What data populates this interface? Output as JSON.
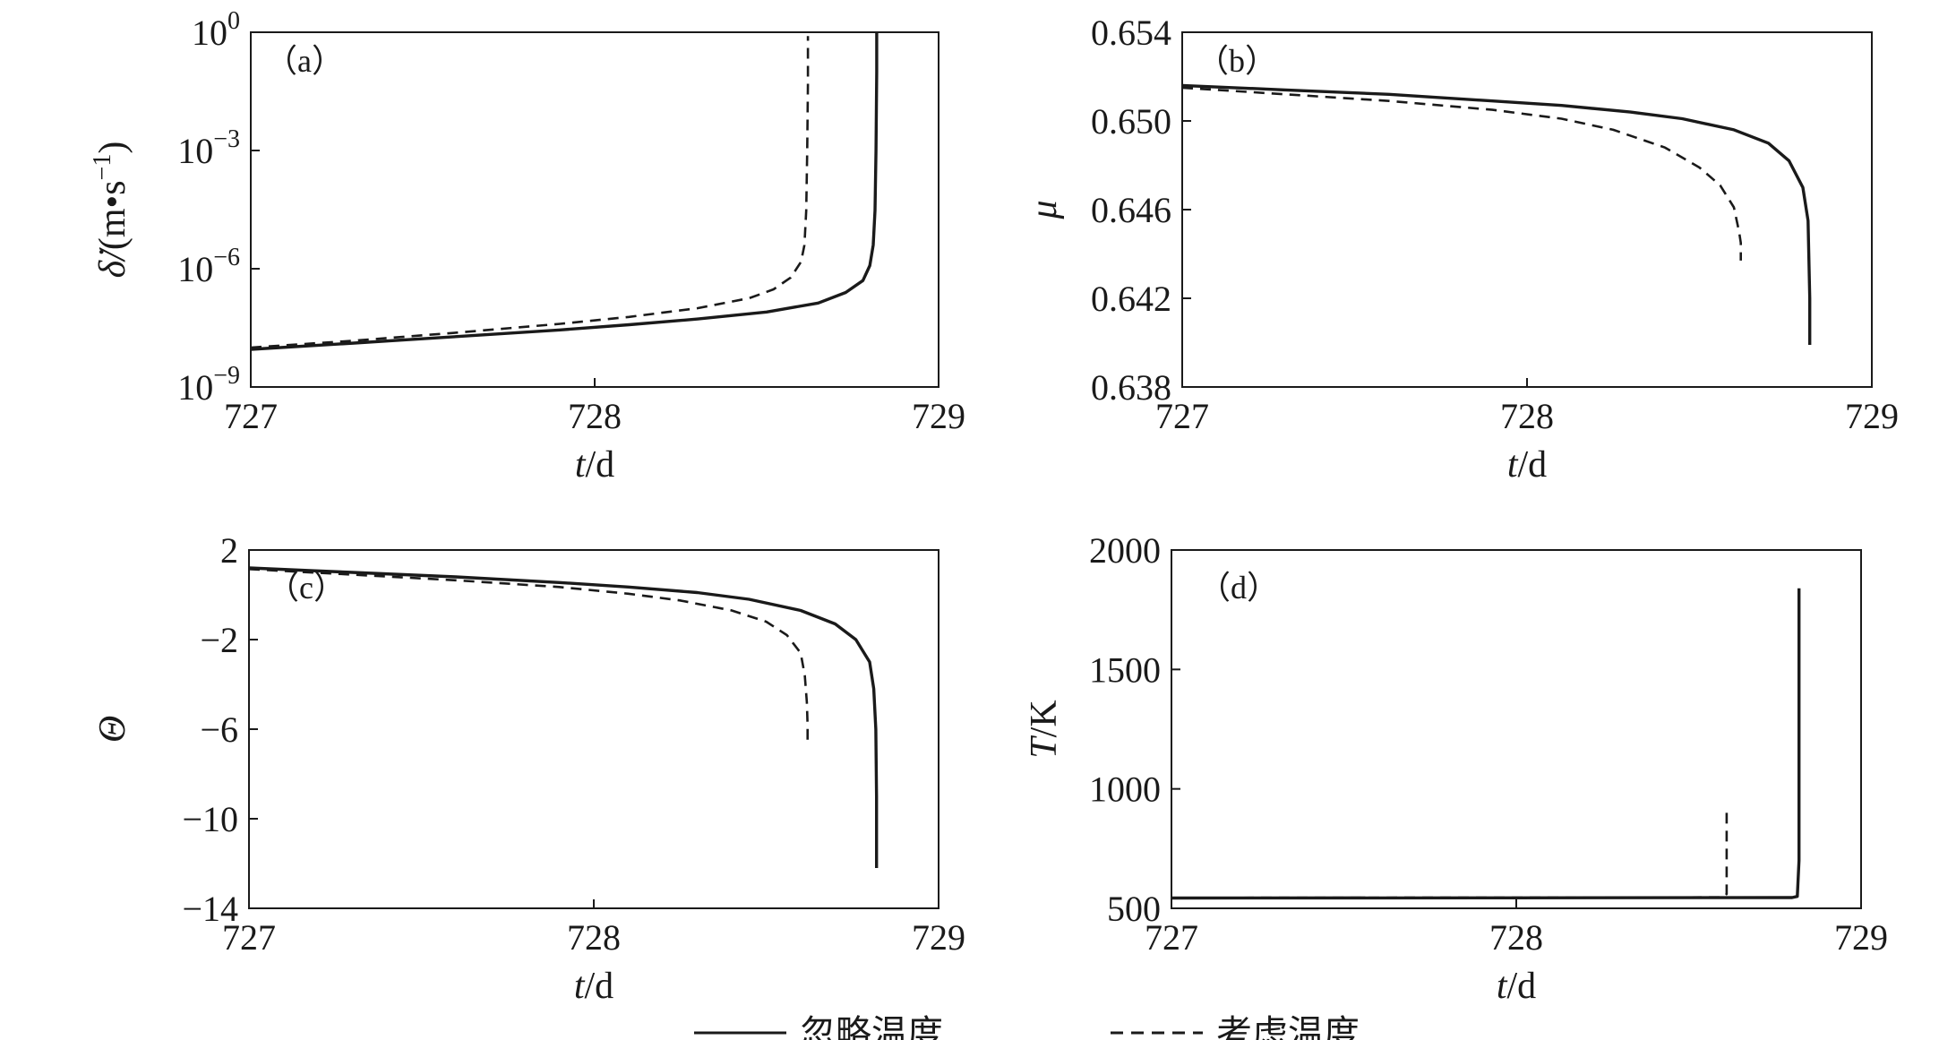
{
  "legend": [
    {
      "label": "忽略温度",
      "style": "solid"
    },
    {
      "label": "考虑温度",
      "style": "dashed"
    }
  ],
  "chart_data": [
    {
      "id": "a",
      "type": "line",
      "panel_label": "（a）",
      "ylabel_pre": "δ̇/",
      "ylabel_unit": "(m•s",
      "ylabel_sup": "−1",
      "ylabel_post": ")",
      "xlabel_italic": "t",
      "xlabel_rest": "/d",
      "xlim": [
        727,
        729
      ],
      "yscale": "log",
      "ylim": [
        1e-09,
        1
      ],
      "xticks": [
        727,
        728,
        729
      ],
      "yticks": [
        {
          "v": 1,
          "base": "10",
          "exp": "0"
        },
        {
          "v": 0.001,
          "base": "10",
          "exp": "−3"
        },
        {
          "v": 1e-06,
          "base": "10",
          "exp": "−6"
        },
        {
          "v": 1e-09,
          "base": "10",
          "exp": "−9"
        }
      ],
      "series": [
        {
          "style": "solid",
          "x": [
            727.0,
            727.3,
            727.6,
            727.9,
            728.1,
            728.3,
            728.5,
            728.65,
            728.73,
            728.78,
            728.8,
            728.81,
            728.815,
            728.818,
            728.82,
            728.82
          ],
          "y": [
            9e-09,
            1.3e-08,
            1.9e-08,
            2.8e-08,
            3.8e-08,
            5.3e-08,
            8e-08,
            1.35e-07,
            2.5e-07,
            5e-07,
            1.2e-06,
            4e-06,
            3e-05,
            0.001,
            0.1,
            1.0
          ]
        },
        {
          "style": "dashed",
          "x": [
            727.0,
            727.3,
            727.6,
            727.9,
            728.1,
            728.3,
            728.45,
            728.52,
            728.57,
            728.6,
            728.61,
            728.615,
            728.618,
            728.62,
            728.62
          ],
          "y": [
            1e-08,
            1.5e-08,
            2.4e-08,
            4e-08,
            6e-08,
            1e-07,
            1.8e-07,
            3e-07,
            6e-07,
            1.5e-06,
            4e-06,
            3e-05,
            0.001,
            0.05,
            0.8
          ]
        }
      ]
    },
    {
      "id": "b",
      "type": "line",
      "panel_label": "（b）",
      "ylabel": "μ",
      "xlabel_italic": "t",
      "xlabel_rest": "/d",
      "xlim": [
        727,
        729
      ],
      "ylim": [
        0.638,
        0.654
      ],
      "xticks": [
        727,
        728,
        729
      ],
      "yticks": [
        0.638,
        0.642,
        0.646,
        0.65,
        0.654
      ],
      "ytick_labels": [
        "0.638",
        "0.642",
        "0.646",
        "0.650",
        "0.654"
      ],
      "series": [
        {
          "style": "solid",
          "x": [
            727.0,
            727.3,
            727.6,
            727.9,
            728.1,
            728.3,
            728.45,
            728.6,
            728.7,
            728.76,
            728.8,
            728.815,
            728.82,
            728.82
          ],
          "y": [
            0.6516,
            0.6514,
            0.6512,
            0.6509,
            0.6507,
            0.6504,
            0.6501,
            0.6496,
            0.649,
            0.6482,
            0.647,
            0.6455,
            0.642,
            0.6399
          ]
        },
        {
          "style": "dashed",
          "x": [
            727.0,
            727.3,
            727.6,
            727.9,
            728.1,
            728.25,
            728.4,
            728.5,
            728.56,
            728.6,
            728.615,
            728.62,
            728.62
          ],
          "y": [
            0.6515,
            0.6512,
            0.6509,
            0.6505,
            0.6501,
            0.6496,
            0.6488,
            0.6479,
            0.6471,
            0.6461,
            0.645,
            0.6445,
            0.6437
          ]
        }
      ]
    },
    {
      "id": "c",
      "type": "line",
      "panel_label": "（c）",
      "ylabel": "Θ",
      "xlabel_italic": "t",
      "xlabel_rest": "/d",
      "xlim": [
        727,
        729
      ],
      "ylim": [
        -14,
        2
      ],
      "xticks": [
        727,
        728,
        729
      ],
      "yticks": [
        2,
        -2,
        -6,
        -10,
        -14
      ],
      "ytick_labels": [
        "2",
        "−2",
        "−6",
        "−10",
        "−14"
      ],
      "series": [
        {
          "style": "solid",
          "x": [
            727.0,
            727.3,
            727.6,
            727.9,
            728.1,
            728.3,
            728.45,
            728.6,
            728.7,
            728.76,
            728.8,
            728.812,
            728.818,
            728.82,
            728.82
          ],
          "y": [
            1.2,
            1.0,
            0.8,
            0.55,
            0.35,
            0.1,
            -0.2,
            -0.7,
            -1.3,
            -2.0,
            -3.0,
            -4.2,
            -6.0,
            -9.0,
            -12.2
          ]
        },
        {
          "style": "dashed",
          "x": [
            727.0,
            727.3,
            727.6,
            727.9,
            728.1,
            728.25,
            728.4,
            728.5,
            728.56,
            728.6,
            728.612,
            728.618,
            728.62,
            728.62
          ],
          "y": [
            1.15,
            0.9,
            0.65,
            0.35,
            0.05,
            -0.25,
            -0.7,
            -1.2,
            -1.8,
            -2.6,
            -3.6,
            -4.8,
            -5.8,
            -6.6
          ]
        }
      ]
    },
    {
      "id": "d",
      "type": "line",
      "panel_label": "（d）",
      "ylabel_italic": "T",
      "ylabel_rest": "/K",
      "xlabel_italic": "t",
      "xlabel_rest": "/d",
      "xlim": [
        727,
        729
      ],
      "ylim": [
        500,
        2000
      ],
      "xticks": [
        727,
        728,
        729
      ],
      "yticks": [
        500,
        1000,
        1500,
        2000
      ],
      "ytick_labels": [
        "500",
        "1000",
        "1500",
        "2000"
      ],
      "series": [
        {
          "style": "solid",
          "x": [
            727.0,
            728.0,
            728.8,
            728.815,
            728.82,
            728.82
          ],
          "y": [
            543,
            544,
            545,
            550,
            700,
            1840
          ]
        },
        {
          "style": "dashed",
          "x": [
            727.0,
            728.0,
            728.6,
            728.61,
            728.61
          ],
          "y": [
            544,
            545,
            546,
            560,
            920
          ]
        }
      ]
    }
  ]
}
